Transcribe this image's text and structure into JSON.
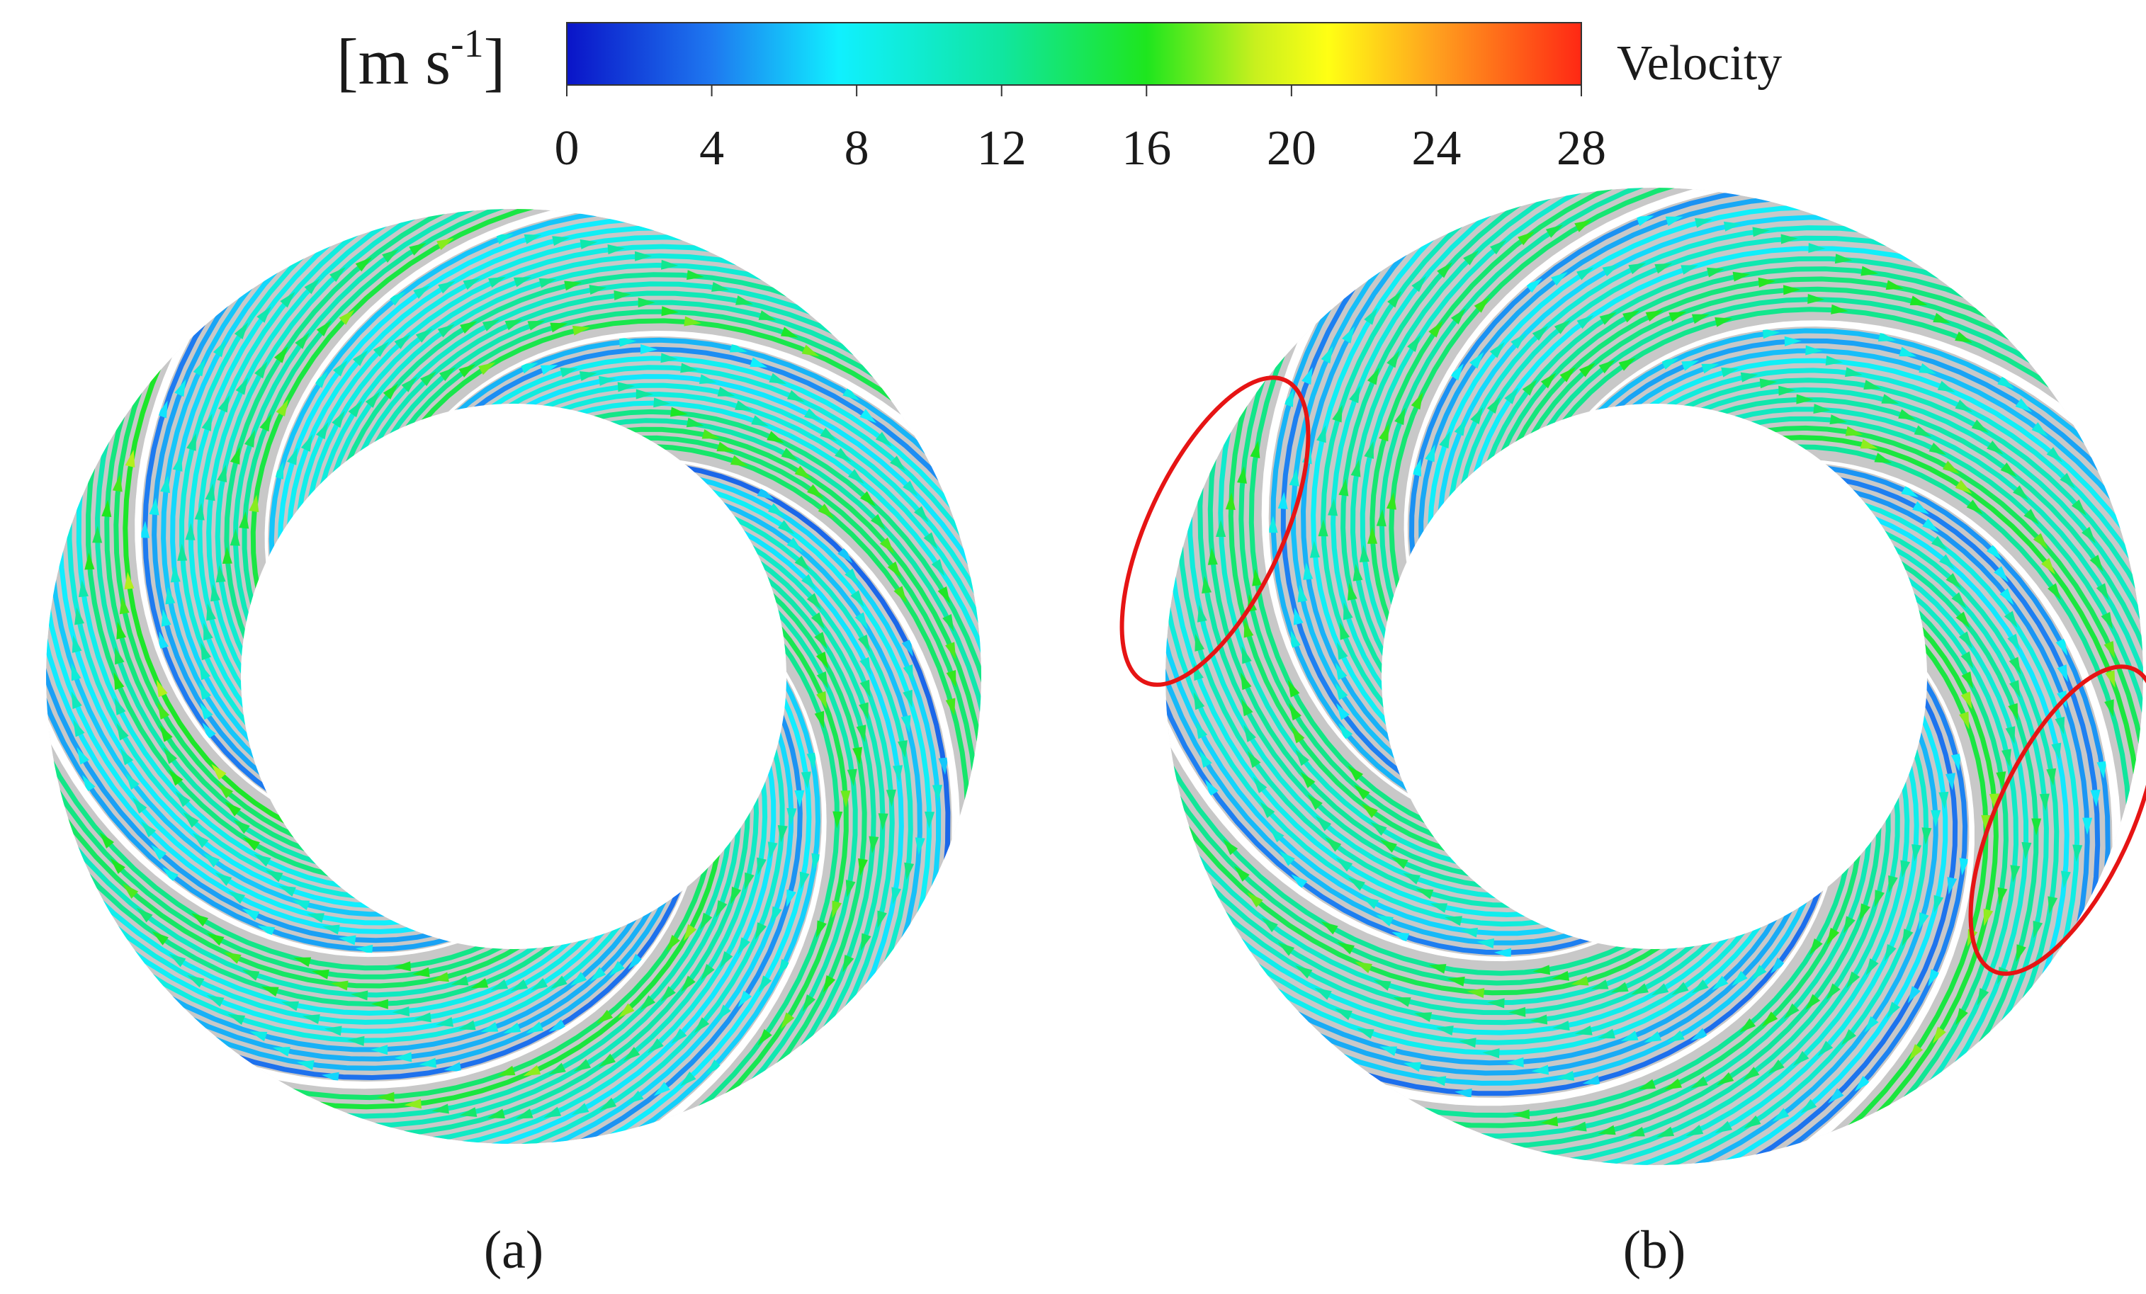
{
  "colorbar": {
    "unit_label": "[m s",
    "unit_exponent": "-1",
    "unit_close": "]",
    "variable_label": "Velocity",
    "ticks": [
      "0",
      "4",
      "8",
      "12",
      "16",
      "20",
      "24",
      "28"
    ],
    "range": [
      0,
      28
    ],
    "stops": [
      {
        "value": 0,
        "color": "#0a14c8"
      },
      {
        "value": 4,
        "color": "#1e78f0"
      },
      {
        "value": 7.5,
        "color": "#10f0ff"
      },
      {
        "value": 12,
        "color": "#10e6a0"
      },
      {
        "value": 16,
        "color": "#1ee61e"
      },
      {
        "value": 19,
        "color": "#c8f01e"
      },
      {
        "value": 21,
        "color": "#ffff14"
      },
      {
        "value": 24,
        "color": "#ffa01e"
      },
      {
        "value": 28,
        "color": "#ff2814"
      }
    ]
  },
  "panels": [
    {
      "label": "(a)",
      "highlight_regions": 0,
      "blades": 7
    },
    {
      "label": "(b)",
      "highlight_regions": 2,
      "blades": 7
    }
  ],
  "colors": {
    "blade_gap": "#ffffff",
    "background_passage": "#c8c8c8",
    "highlight_ellipse": "#e61414"
  }
}
